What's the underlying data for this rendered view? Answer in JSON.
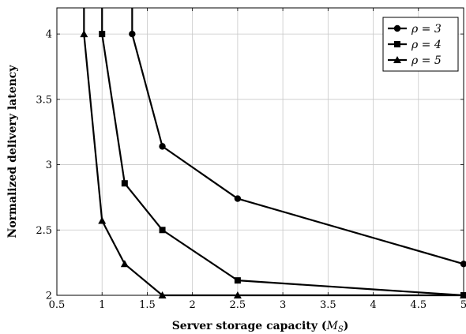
{
  "chart_data": {
    "type": "line",
    "title": "",
    "xlabel": "Server storage capacity (M_S)",
    "xlabel_parts": {
      "main": "Server storage capacity (",
      "var": "M",
      "sub": "S",
      "close": ")"
    },
    "ylabel": "Normalized delivery latency",
    "xlim": [
      0.5,
      5
    ],
    "ylim": [
      2,
      4.2
    ],
    "xticks": [
      0.5,
      1,
      1.5,
      2,
      2.5,
      3,
      3.5,
      4,
      4.5,
      5
    ],
    "xtick_labels": [
      "0.5",
      "1",
      "1.5",
      "2",
      "2.5",
      "3",
      "3.5",
      "4",
      "4.5",
      "5"
    ],
    "yticks": [
      2,
      2.5,
      3,
      3.5,
      4
    ],
    "ytick_labels": [
      "2",
      "2.5",
      "3",
      "3.5",
      "4"
    ],
    "grid": true,
    "legend_position": "top-right",
    "series": [
      {
        "name": "ρ = 3",
        "marker": "circle",
        "x": [
          1.333,
          1.333,
          1.667,
          2.5,
          5
        ],
        "y": [
          4.2,
          4.0,
          3.14,
          2.74,
          2.24
        ]
      },
      {
        "name": "ρ = 4",
        "marker": "square",
        "x": [
          1.0,
          1.0,
          1.25,
          1.667,
          2.5,
          5
        ],
        "y": [
          4.2,
          4.0,
          2.857,
          2.5,
          2.114,
          2.0
        ]
      },
      {
        "name": "ρ = 5",
        "marker": "triangle",
        "x": [
          0.8,
          0.8,
          1.0,
          1.25,
          1.667,
          2.5,
          5
        ],
        "y": [
          4.2,
          4.0,
          2.571,
          2.24,
          2.0,
          2.0,
          2.0
        ]
      }
    ],
    "marker_skip_first": true
  }
}
